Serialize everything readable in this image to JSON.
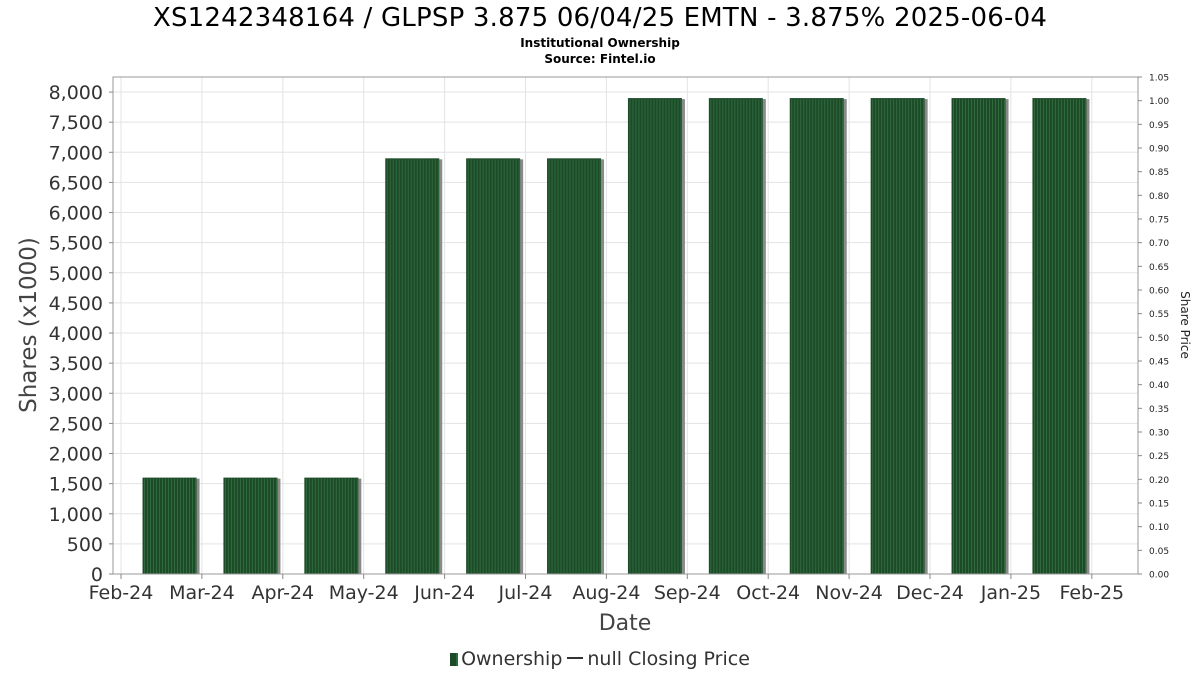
{
  "header": {
    "title": "XS1242348164 / GLPSP 3.875 06/04/25 EMTN - 3.875% 2025-06-04",
    "subtitle": "Institutional Ownership",
    "source": "Source: Fintel.io"
  },
  "legend": {
    "ownership_label": "Ownership",
    "price_label": "null Closing Price"
  },
  "colors": {
    "bar": "#1d4a28",
    "bar_stripe": "#2f6b3c",
    "bar_shadow": "#8a8a8a",
    "grid": "#e3e3e3"
  },
  "chart_data": {
    "type": "bar",
    "title": "XS1242348164 / GLPSP 3.875 06/04/25 EMTN - 3.875% 2025-06-04",
    "subtitle": "Institutional Ownership",
    "xlabel": "Date",
    "ylabel": "Shares (x1000)",
    "y2label": "Share Price",
    "x_ticks": [
      "Feb-24",
      "Mar-24",
      "Apr-24",
      "May-24",
      "Jun-24",
      "Jul-24",
      "Aug-24",
      "Sep-24",
      "Oct-24",
      "Nov-24",
      "Dec-24",
      "Jan-25",
      "Feb-25"
    ],
    "y_ticks": [
      "0",
      "500",
      "1,000",
      "1,500",
      "2,000",
      "2,500",
      "3,000",
      "3,500",
      "4,000",
      "4,500",
      "5,000",
      "5,500",
      "6,000",
      "6,500",
      "7,000",
      "7,500",
      "8,000"
    ],
    "y2_ticks": [
      "0.00",
      "0.05",
      "0.10",
      "0.15",
      "0.20",
      "0.25",
      "0.30",
      "0.35",
      "0.40",
      "0.45",
      "0.50",
      "0.55",
      "0.60",
      "0.65",
      "0.70",
      "0.75",
      "0.80",
      "0.85",
      "0.90",
      "0.95",
      "1.00",
      "1.05"
    ],
    "ylim": [
      0,
      8250
    ],
    "y2lim": [
      0,
      1.05
    ],
    "categories": [
      "Mar-24",
      "Apr-24",
      "May-24",
      "Jun-24",
      "Jul-24",
      "Aug-24",
      "Sep-24",
      "Oct-24",
      "Nov-24",
      "Dec-24",
      "Jan-25",
      "Feb-25"
    ],
    "series": [
      {
        "name": "Ownership",
        "values": [
          1600,
          1600,
          1600,
          6900,
          6900,
          6900,
          7900,
          7900,
          7900,
          7900,
          7900,
          7900
        ]
      }
    ],
    "grid": true,
    "legend_position": "bottom"
  }
}
